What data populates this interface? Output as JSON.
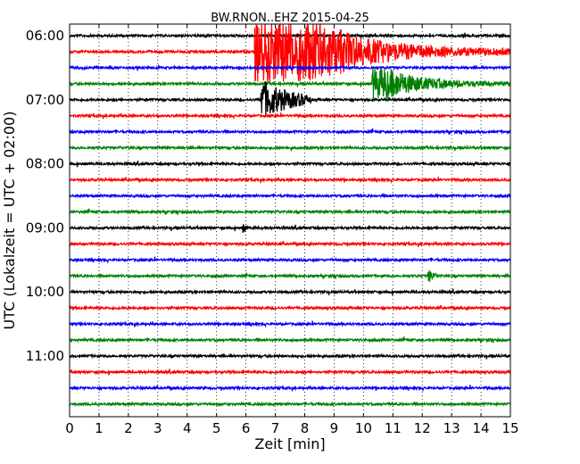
{
  "chart_data": {
    "type": "line",
    "title": "BW.RNON..EHZ 2015-04-25",
    "xlabel": "Zeit  [min]",
    "ylabel": "UTC (Lokalzeit = UTC + 02:00)",
    "xlim": [
      0,
      15
    ],
    "xticks": [
      "0",
      "1",
      "2",
      "3",
      "4",
      "5",
      "6",
      "7",
      "8",
      "9",
      "10",
      "11",
      "12",
      "13",
      "14",
      "15"
    ],
    "y_tick_labels": [
      "06:00",
      "07:00",
      "08:00",
      "09:00",
      "10:00",
      "11:00"
    ],
    "y_tick_trace_index": [
      0,
      4,
      8,
      12,
      16,
      20
    ],
    "trace_count": 24,
    "trace_interval_minutes": 15,
    "start_time": "06:00",
    "trace_colors": [
      "#000000",
      "#ff0000",
      "#0000ff",
      "#008000"
    ],
    "grid": "vertical dotted",
    "events": [
      {
        "trace": 1,
        "start_min": 6.3,
        "end_min": 15.0,
        "note": "large earthquake arrival, clipped"
      },
      {
        "trace": 3,
        "start_min": 10.3,
        "end_min": 15.0,
        "note": "continuation"
      },
      {
        "trace": 4,
        "start_min": 6.5,
        "end_min": 8.2,
        "note": "continuation"
      },
      {
        "trace": 15,
        "start_min": 12.2,
        "end_min": 13.0,
        "note": "aftershock"
      },
      {
        "trace": 12,
        "start_min": 5.9,
        "end_min": 6.2,
        "note": "small event"
      }
    ]
  }
}
